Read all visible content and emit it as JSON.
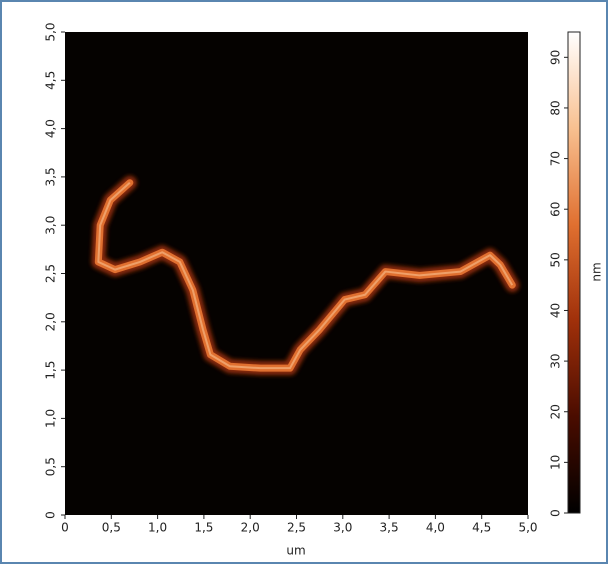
{
  "chart_data": {
    "type": "image",
    "xlabel": "um",
    "xlim": [
      0,
      5
    ],
    "ylim": [
      0,
      5
    ],
    "xticks": [
      0,
      {
        "value": 0.5,
        "label": "0,5"
      },
      {
        "value": 1,
        "label": "1,0"
      },
      {
        "value": 1.5,
        "label": "1,5"
      },
      {
        "value": 2,
        "label": "2,0"
      },
      {
        "value": 2.5,
        "label": "2,5"
      },
      {
        "value": 3,
        "label": "3,0"
      },
      {
        "value": 3.5,
        "label": "3,5"
      },
      {
        "value": 4,
        "label": "4,0"
      },
      {
        "value": 4.5,
        "label": "4,5"
      },
      {
        "value": 5,
        "label": "5,0"
      }
    ],
    "yticks": [
      0,
      {
        "value": 0.5,
        "label": "0,5"
      },
      {
        "value": 1,
        "label": "1,0"
      },
      {
        "value": 1.5,
        "label": "1,5"
      },
      {
        "value": 2,
        "label": "2,0"
      },
      {
        "value": 2.5,
        "label": "2,5"
      },
      {
        "value": 3,
        "label": "3,0"
      },
      {
        "value": 3.5,
        "label": "3,5"
      },
      {
        "value": 4,
        "label": "4,0"
      },
      {
        "value": 4.5,
        "label": "4,5"
      },
      {
        "value": 5,
        "label": "5,0"
      }
    ],
    "colorbar_label": "nm",
    "clim": [
      0,
      95
    ],
    "cticks": [
      0,
      10,
      20,
      30,
      40,
      50,
      60,
      70,
      80,
      90
    ],
    "colormap": [
      "#000000",
      "#4a0c00",
      "#a0300a",
      "#e07030",
      "#f8c090",
      "#ffffff"
    ],
    "trace": {
      "x": [
        0.7,
        0.49,
        0.38,
        0.36,
        0.54,
        0.81,
        1.05,
        1.24,
        1.38,
        1.49,
        1.57,
        1.78,
        2.11,
        2.43,
        2.54,
        2.75,
        3.02,
        3.24,
        3.46,
        3.83,
        4.27,
        4.59,
        4.7,
        4.83
      ],
      "y": [
        3.44,
        3.26,
        3.0,
        2.62,
        2.54,
        2.62,
        2.72,
        2.62,
        2.33,
        1.92,
        1.66,
        1.54,
        1.52,
        1.52,
        1.71,
        1.92,
        2.23,
        2.28,
        2.52,
        2.48,
        2.52,
        2.69,
        2.59,
        2.38
      ]
    }
  }
}
